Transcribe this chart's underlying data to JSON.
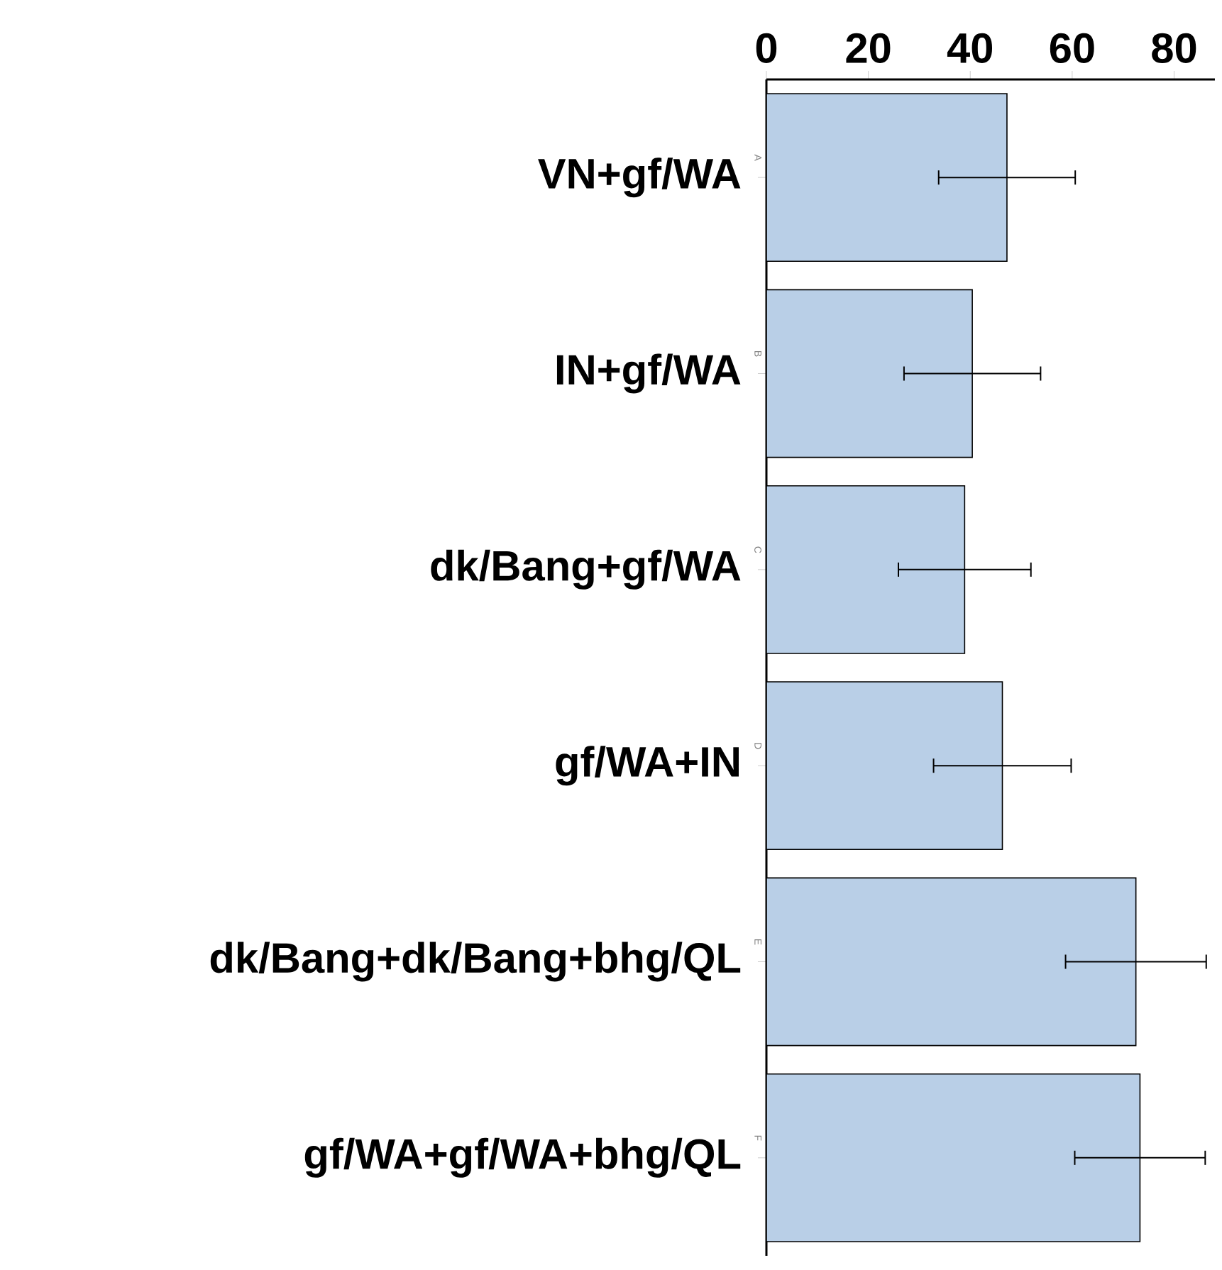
{
  "chart_data": {
    "type": "bar",
    "orientation": "horizontal",
    "categories": [
      "VN+gf/WA",
      "IN+gf/WA",
      "dk/Bang+gf/WA",
      "gf/WA+IN",
      "dk/Bang+dk/Bang+bhg/QL",
      "gf/WA+gf/WA+bhg/QL"
    ],
    "values": [
      47.2,
      40.4,
      38.9,
      46.3,
      72.5,
      73.3
    ],
    "errors": [
      13.4,
      13.4,
      13,
      13.5,
      13.8,
      12.8
    ],
    "color": "#b9cfe7",
    "xlim": [
      0,
      88
    ],
    "xticks": [
      0,
      20,
      40,
      60,
      80
    ],
    "grid": false,
    "annotations": [
      "A",
      "B",
      "C",
      "D",
      "E",
      "F"
    ]
  }
}
